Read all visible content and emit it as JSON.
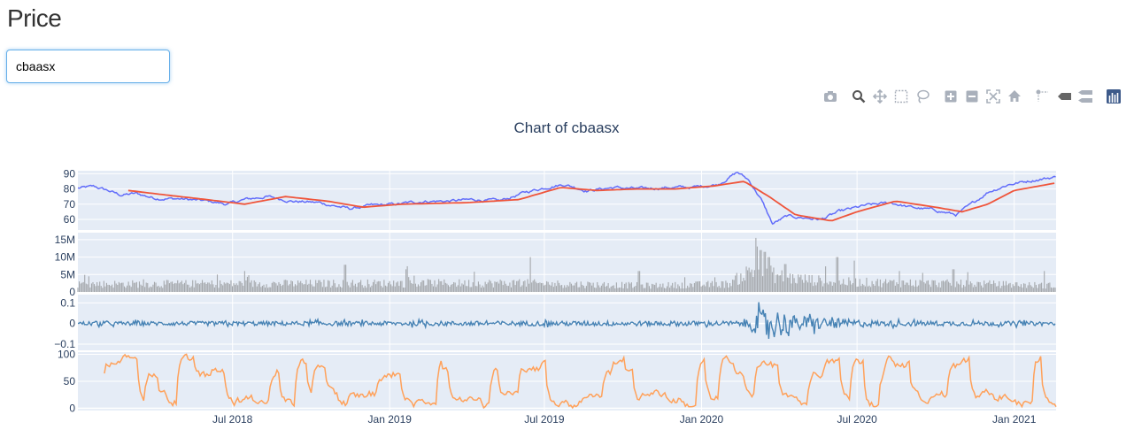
{
  "page": {
    "title": "Price"
  },
  "search": {
    "value": "cbaasx"
  },
  "modebar": {
    "buttons": [
      {
        "name": "camera-icon",
        "x": 12,
        "kind": "camera"
      },
      {
        "name": "zoom-icon",
        "x": 44,
        "kind": "zoom"
      },
      {
        "name": "pan-icon",
        "x": 68,
        "kind": "pan"
      },
      {
        "name": "box-select-icon",
        "x": 92,
        "kind": "box"
      },
      {
        "name": "lasso-select-icon",
        "x": 116,
        "kind": "lasso"
      },
      {
        "name": "zoom-in-icon",
        "x": 148,
        "kind": "plus"
      },
      {
        "name": "zoom-out-icon",
        "x": 172,
        "kind": "minus"
      },
      {
        "name": "autoscale-icon",
        "x": 196,
        "kind": "autoscale"
      },
      {
        "name": "reset-axes-icon",
        "x": 220,
        "kind": "home"
      },
      {
        "name": "spike-lines-icon",
        "x": 252,
        "kind": "spike"
      },
      {
        "name": "hover-closest-icon",
        "x": 276,
        "kind": "hoverclosest"
      },
      {
        "name": "hover-compare-icon",
        "x": 300,
        "kind": "hovercompare"
      },
      {
        "name": "plotly-logo-icon",
        "x": 332,
        "kind": "logo"
      }
    ]
  },
  "colors": {
    "price": "#636efa",
    "moving_average": "#ef553b",
    "volume": "#a4a7ab",
    "returns": "#4682b4",
    "oscillator": "#ffa15a",
    "plot_bg": "#e5ecf6",
    "grid": "#ffffff",
    "text": "#2a3f5f"
  },
  "chart_data": {
    "type": "line",
    "title": "Chart of cbaasx",
    "x_range": [
      "2018-01-01",
      "2021-02-19"
    ],
    "x_ticks": [
      {
        "date": "2018-07-01",
        "label": "Jul 2018"
      },
      {
        "date": "2019-01-01",
        "label": "Jan 2019"
      },
      {
        "date": "2019-07-01",
        "label": "Jul 2019"
      },
      {
        "date": "2020-01-01",
        "label": "Jan 2020"
      },
      {
        "date": "2020-07-01",
        "label": "Jul 2020"
      },
      {
        "date": "2021-01-01",
        "label": "Jan 2021"
      }
    ],
    "panels": [
      {
        "name": "price-panel",
        "ylim": [
          53,
          92
        ],
        "y_ticks": [
          {
            "v": 60,
            "label": "60"
          },
          {
            "v": 70,
            "label": "70"
          },
          {
            "v": 80,
            "label": "80"
          },
          {
            "v": 90,
            "label": "90"
          }
        ],
        "series": [
          {
            "key": "price",
            "type": "line",
            "color_key": "price",
            "noise": 1.4,
            "points": [
              [
                "2018-01-01",
                80.5
              ],
              [
                "2018-01-20",
                81.5
              ],
              [
                "2018-02-05",
                79
              ],
              [
                "2018-02-20",
                76
              ],
              [
                "2018-03-10",
                77
              ],
              [
                "2018-04-01",
                74
              ],
              [
                "2018-05-01",
                73.5
              ],
              [
                "2018-06-01",
                72
              ],
              [
                "2018-06-25",
                70
              ],
              [
                "2018-07-15",
                73
              ],
              [
                "2018-08-10",
                75
              ],
              [
                "2018-09-10",
                72
              ],
              [
                "2018-10-10",
                71
              ],
              [
                "2018-11-15",
                67
              ],
              [
                "2018-12-10",
                69
              ],
              [
                "2019-01-10",
                70
              ],
              [
                "2019-02-10",
                72
              ],
              [
                "2019-03-10",
                72
              ],
              [
                "2019-04-10",
                73
              ],
              [
                "2019-05-10",
                72
              ],
              [
                "2019-06-10",
                78
              ],
              [
                "2019-07-10",
                82
              ],
              [
                "2019-07-25",
                83
              ],
              [
                "2019-08-20",
                79
              ],
              [
                "2019-09-20",
                81
              ],
              [
                "2019-10-20",
                80
              ],
              [
                "2019-11-20",
                81
              ],
              [
                "2019-12-20",
                81
              ],
              [
                "2020-01-20",
                83
              ],
              [
                "2020-02-12",
                91
              ],
              [
                "2020-02-25",
                86
              ],
              [
                "2020-03-10",
                74
              ],
              [
                "2020-03-24",
                57
              ],
              [
                "2020-04-10",
                62
              ],
              [
                "2020-05-01",
                61
              ],
              [
                "2020-05-20",
                60
              ],
              [
                "2020-06-10",
                65
              ],
              [
                "2020-07-10",
                69
              ],
              [
                "2020-08-10",
                71
              ],
              [
                "2020-09-01",
                68
              ],
              [
                "2020-10-01",
                66
              ],
              [
                "2020-10-25",
                63
              ],
              [
                "2020-11-10",
                69
              ],
              [
                "2020-12-01",
                78
              ],
              [
                "2020-12-25",
                83
              ],
              [
                "2021-01-25",
                86
              ],
              [
                "2021-02-19",
                88
              ]
            ]
          },
          {
            "key": "moving_average",
            "type": "line",
            "color_key": "moving_average",
            "noise": 0,
            "points": [
              [
                "2018-03-01",
                79
              ],
              [
                "2018-04-15",
                76
              ],
              [
                "2018-06-01",
                73
              ],
              [
                "2018-07-15",
                70
              ],
              [
                "2018-09-01",
                75
              ],
              [
                "2018-10-20",
                72
              ],
              [
                "2018-12-01",
                68
              ],
              [
                "2019-01-15",
                70
              ],
              [
                "2019-04-01",
                71
              ],
              [
                "2019-06-01",
                73
              ],
              [
                "2019-07-20",
                81
              ],
              [
                "2019-09-01",
                79
              ],
              [
                "2019-10-15",
                80
              ],
              [
                "2019-12-01",
                80
              ],
              [
                "2020-01-15",
                82
              ],
              [
                "2020-02-20",
                85
              ],
              [
                "2020-03-20",
                75
              ],
              [
                "2020-04-20",
                63
              ],
              [
                "2020-06-01",
                59
              ],
              [
                "2020-07-01",
                65
              ],
              [
                "2020-08-15",
                72
              ],
              [
                "2020-10-01",
                68
              ],
              [
                "2020-11-01",
                65
              ],
              [
                "2020-12-01",
                70
              ],
              [
                "2021-01-01",
                79
              ],
              [
                "2021-02-19",
                84
              ]
            ]
          }
        ]
      },
      {
        "name": "volume-panel",
        "ylim": [
          0,
          17000000
        ],
        "y_ticks": [
          {
            "v": 0,
            "label": "0"
          },
          {
            "v": 5000000,
            "label": "5M"
          },
          {
            "v": 10000000,
            "label": "10M"
          },
          {
            "v": 15000000,
            "label": "15M"
          }
        ],
        "series": [
          {
            "key": "volume",
            "type": "bar",
            "color_key": "volume",
            "base_points": [
              [
                "2018-01-01",
                2500000
              ],
              [
                "2019-06-01",
                2800000
              ],
              [
                "2019-11-01",
                2000000
              ],
              [
                "2020-02-01",
                2500000
              ],
              [
                "2020-03-01",
                7000000
              ],
              [
                "2020-04-10",
                4500000
              ],
              [
                "2020-06-01",
                3200000
              ],
              [
                "2020-12-01",
                2500000
              ],
              [
                "2021-02-19",
                2000000
              ]
            ],
            "spikes": [
              [
                "2018-07-15",
                6000000
              ],
              [
                "2018-11-10",
                7800000
              ],
              [
                "2019-01-20",
                6500000
              ],
              [
                "2019-04-10",
                5800000
              ],
              [
                "2019-06-15",
                10000000
              ],
              [
                "2019-10-20",
                6000000
              ],
              [
                "2020-03-05",
                15500000
              ],
              [
                "2020-03-10",
                12000000
              ],
              [
                "2020-03-15",
                11500000
              ],
              [
                "2020-03-20",
                10000000
              ],
              [
                "2020-04-08",
                8000000
              ],
              [
                "2020-06-08",
                10000000
              ],
              [
                "2020-08-20",
                6000000
              ],
              [
                "2020-10-22",
                6500000
              ],
              [
                "2021-02-05",
                6000000
              ]
            ]
          }
        ]
      },
      {
        "name": "returns-panel",
        "ylim": [
          -0.13,
          0.14
        ],
        "y_ticks": [
          {
            "v": -0.1,
            "label": "−0.1"
          },
          {
            "v": 0,
            "label": "0"
          },
          {
            "v": 0.1,
            "label": "0.1"
          }
        ],
        "series": [
          {
            "key": "returns",
            "type": "line",
            "color_key": "returns",
            "volatility": [
              [
                "2018-01-01",
                0.01
              ],
              [
                "2020-02-15",
                0.012
              ],
              [
                "2020-03-05",
                0.05
              ],
              [
                "2020-03-20",
                0.09
              ],
              [
                "2020-04-15",
                0.04
              ],
              [
                "2020-06-15",
                0.022
              ],
              [
                "2020-08-01",
                0.013
              ],
              [
                "2021-02-19",
                0.01
              ]
            ]
          }
        ]
      },
      {
        "name": "oscillator-panel",
        "ylim": [
          -4,
          104
        ],
        "y_ticks": [
          {
            "v": 0,
            "label": "0"
          },
          {
            "v": 50,
            "label": "50"
          },
          {
            "v": 100,
            "label": "100"
          }
        ],
        "series": [
          {
            "key": "oscillator",
            "type": "line",
            "color_key": "oscillator",
            "start": "2018-02-01"
          }
        ]
      }
    ]
  }
}
